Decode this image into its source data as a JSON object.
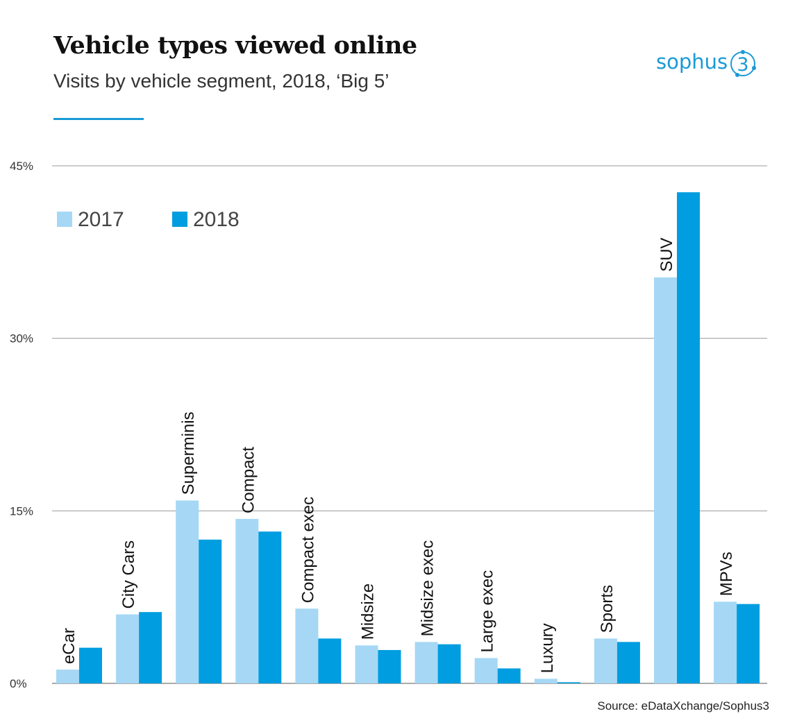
{
  "header": {
    "title": "Vehicle types viewed online",
    "subtitle": "Visits by vehicle segment, 2018, ‘Big 5’"
  },
  "logo": {
    "text": "sophus",
    "mark": "3"
  },
  "source": "Source: eDataXchange/Sophus3",
  "colors": {
    "s2017": "#a6d8f5",
    "s2018": "#009de0",
    "accent": "#1a9ad6",
    "grid": "#9a9a9a"
  },
  "chart_data": {
    "type": "bar",
    "title": "Vehicle types viewed online",
    "subtitle": "Visits by vehicle segment, 2018, ‘Big 5’",
    "categories": [
      "eCar",
      "City Cars",
      "Superminis",
      "Compact",
      "Compact exec",
      "Midsize",
      "Midsize exec",
      "Large exec",
      "Luxury",
      "Sports",
      "SUV",
      "MPVs"
    ],
    "series": [
      {
        "name": "2017",
        "values": [
          1.2,
          6.0,
          15.9,
          14.3,
          6.5,
          3.3,
          3.6,
          2.2,
          0.4,
          3.9,
          35.3,
          7.1
        ]
      },
      {
        "name": "2018",
        "values": [
          3.1,
          6.2,
          12.5,
          13.2,
          3.9,
          2.9,
          3.4,
          1.3,
          0.1,
          3.6,
          42.7,
          6.9
        ]
      }
    ],
    "ylim": [
      0,
      45
    ],
    "yticks": [
      "0%",
      "15%",
      "30%",
      "45%"
    ],
    "ytick_values": [
      0,
      15,
      30,
      45
    ],
    "legend_placement": "top-left",
    "grid": true,
    "xlabel": "",
    "ylabel": ""
  }
}
